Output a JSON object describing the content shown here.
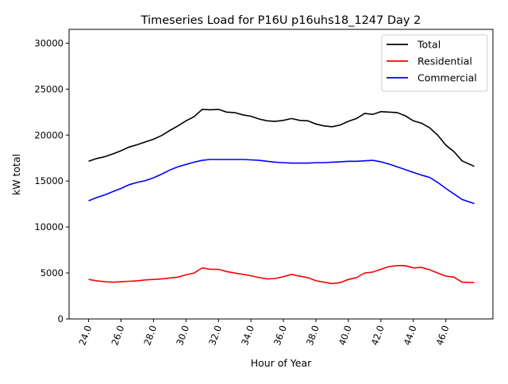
{
  "chart_data": {
    "type": "line",
    "title": "Timeseries Load for P16U p16uhs18_1247  Day 2",
    "xlabel": "Hour of Year",
    "ylabel": "kW total",
    "xlim": [
      22.8,
      48.9
    ],
    "ylim": [
      0,
      31500
    ],
    "xticks": [
      24,
      26,
      28,
      30,
      32,
      34,
      36,
      38,
      40,
      42,
      44,
      46
    ],
    "xtick_labels": [
      "24.0",
      "26.0",
      "28.0",
      "30.0",
      "32.0",
      "34.0",
      "36.0",
      "38.0",
      "40.0",
      "42.0",
      "44.0",
      "46.0"
    ],
    "yticks": [
      0,
      5000,
      10000,
      15000,
      20000,
      25000,
      30000
    ],
    "ytick_labels": [
      "0",
      "5000",
      "10000",
      "15000",
      "20000",
      "25000",
      "30000"
    ],
    "grid": false,
    "legend_position": "top-right",
    "x": [
      24.0,
      24.5,
      25.0,
      25.5,
      26.0,
      26.5,
      27.0,
      27.5,
      28.0,
      28.5,
      29.0,
      29.5,
      30.0,
      30.5,
      31.0,
      31.5,
      32.0,
      32.5,
      33.0,
      33.5,
      34.0,
      34.5,
      35.0,
      35.5,
      36.0,
      36.5,
      37.0,
      37.5,
      38.0,
      38.5,
      39.0,
      39.5,
      40.0,
      40.5,
      41.0,
      41.5,
      42.0,
      42.5,
      43.0,
      43.5,
      44.0,
      44.5,
      45.0,
      45.5,
      46.0,
      46.5,
      47.0,
      47.75
    ],
    "series": [
      {
        "name": "Total",
        "color": "#000000",
        "values": [
          17150,
          17450,
          17650,
          17950,
          18300,
          18700,
          18950,
          19250,
          19550,
          19950,
          20500,
          21000,
          21550,
          22000,
          22800,
          22750,
          22800,
          22500,
          22450,
          22200,
          22050,
          21750,
          21550,
          21500,
          21600,
          21800,
          21600,
          21550,
          21200,
          21000,
          20900,
          21100,
          21500,
          21800,
          22350,
          22250,
          22550,
          22500,
          22450,
          22100,
          21550,
          21300,
          20800,
          20000,
          18900,
          18200,
          17200,
          16600
        ]
      },
      {
        "name": "Residential",
        "color": "#ff0000",
        "values": [
          4300,
          4150,
          4050,
          4000,
          4050,
          4100,
          4150,
          4250,
          4300,
          4350,
          4450,
          4550,
          4800,
          5000,
          5550,
          5400,
          5400,
          5150,
          5000,
          4850,
          4700,
          4500,
          4350,
          4400,
          4600,
          4850,
          4650,
          4500,
          4150,
          4000,
          3850,
          3950,
          4300,
          4500,
          5000,
          5100,
          5400,
          5700,
          5800,
          5800,
          5550,
          5600,
          5350,
          5000,
          4650,
          4550,
          4000,
          3950
        ]
      },
      {
        "name": "Commercial",
        "color": "#0000ff",
        "values": [
          12850,
          13200,
          13500,
          13850,
          14200,
          14600,
          14850,
          15050,
          15350,
          15750,
          16200,
          16550,
          16800,
          17050,
          17250,
          17350,
          17350,
          17350,
          17350,
          17350,
          17300,
          17250,
          17150,
          17050,
          17000,
          16950,
          16950,
          16950,
          17000,
          17000,
          17050,
          17100,
          17150,
          17150,
          17200,
          17250,
          17100,
          16850,
          16550,
          16250,
          15950,
          15650,
          15400,
          14850,
          14200,
          13600,
          13000,
          12550
        ]
      }
    ]
  }
}
